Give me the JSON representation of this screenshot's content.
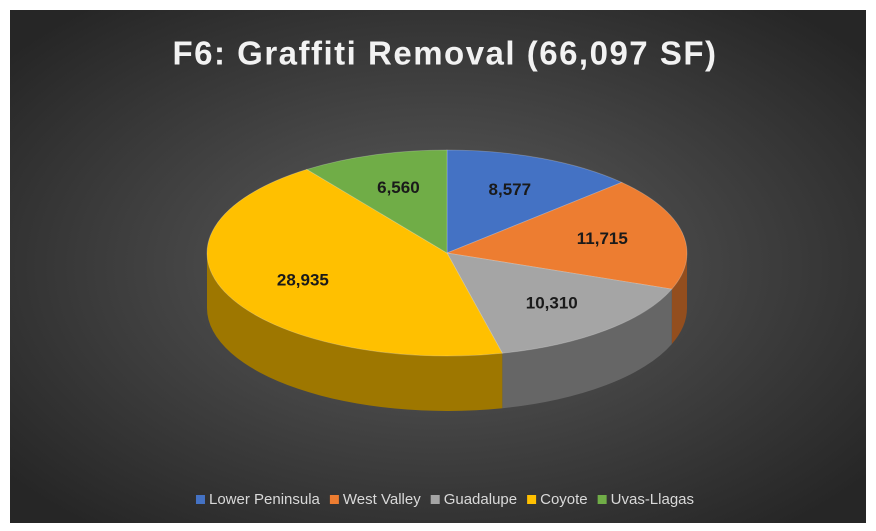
{
  "chart_data": {
    "type": "pie",
    "title": "F6: Graffiti Removal (66,097 SF)",
    "categories": [
      "Lower Peninsula",
      "West Valley",
      "Guadalupe",
      "Coyote",
      "Uvas-Llagas"
    ],
    "values": [
      8577,
      11715,
      10310,
      28935,
      6560
    ],
    "value_labels": [
      "8,577",
      "11,715",
      "10,310",
      "28,935",
      "6,560"
    ],
    "colors": [
      "#4472c4",
      "#ed7d31",
      "#a5a5a5",
      "#ffc000",
      "#70ad47"
    ],
    "legend": "bottom"
  }
}
